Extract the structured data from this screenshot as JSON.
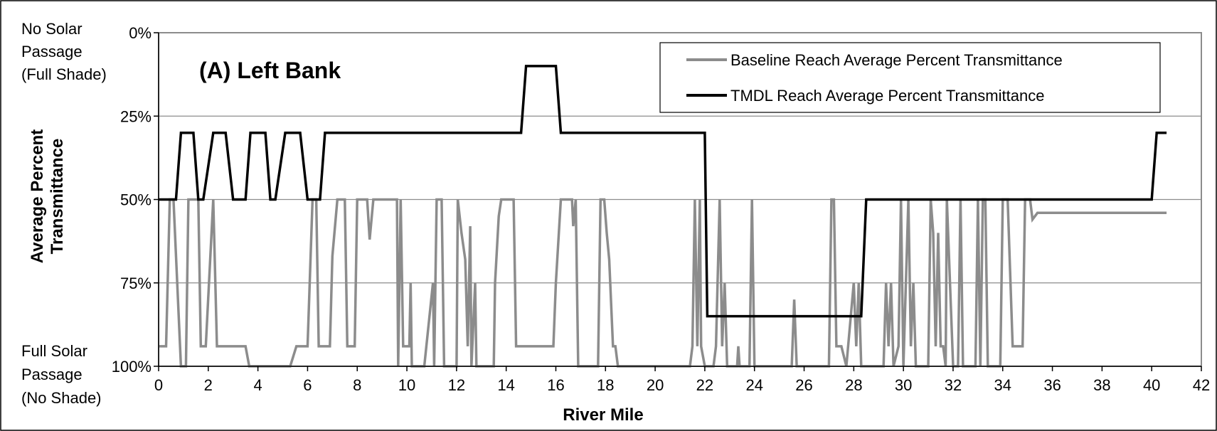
{
  "chart_data": {
    "type": "line",
    "title": "(A) Left Bank",
    "xlabel": "River Mile",
    "ylabel": "Average Percent Transmittance",
    "xlim": [
      0,
      42
    ],
    "ylim": [
      0,
      100
    ],
    "y_inverted": true,
    "xticks": [
      0,
      2,
      4,
      6,
      8,
      10,
      12,
      14,
      16,
      18,
      20,
      22,
      24,
      26,
      28,
      30,
      32,
      34,
      36,
      38,
      40,
      42
    ],
    "yticks": [
      0,
      25,
      50,
      75,
      100
    ],
    "ytick_labels": [
      "0%",
      "25%",
      "50%",
      "75%",
      "100%"
    ],
    "grid": "horizontal",
    "legend_position": "top-right",
    "top_annotation": [
      "No Solar",
      "Passage",
      "(Full Shade)"
    ],
    "bottom_annotation": [
      "Full Solar",
      "Passage",
      "(No Shade)"
    ],
    "series": [
      {
        "name": "Baseline Reach Average Percent Transmittance",
        "color": "#8c8c8c",
        "points": [
          [
            0,
            94
          ],
          [
            0.3,
            94
          ],
          [
            0.45,
            50
          ],
          [
            0.6,
            50
          ],
          [
            0.9,
            100
          ],
          [
            1.1,
            100
          ],
          [
            1.2,
            50
          ],
          [
            1.6,
            50
          ],
          [
            1.7,
            94
          ],
          [
            1.9,
            94
          ],
          [
            2.2,
            50
          ],
          [
            2.35,
            94
          ],
          [
            3.5,
            94
          ],
          [
            3.65,
            100
          ],
          [
            5.3,
            100
          ],
          [
            5.55,
            94
          ],
          [
            6.0,
            94
          ],
          [
            6.2,
            50
          ],
          [
            6.35,
            50
          ],
          [
            6.45,
            94
          ],
          [
            6.9,
            94
          ],
          [
            7.0,
            67
          ],
          [
            7.2,
            50
          ],
          [
            7.5,
            50
          ],
          [
            7.6,
            94
          ],
          [
            7.9,
            94
          ],
          [
            8.0,
            50
          ],
          [
            8.4,
            50
          ],
          [
            8.5,
            62
          ],
          [
            8.65,
            50
          ],
          [
            9.6,
            50
          ],
          [
            9.65,
            100
          ],
          [
            9.75,
            50
          ],
          [
            9.85,
            94
          ],
          [
            10.1,
            94
          ],
          [
            10.15,
            75
          ],
          [
            10.2,
            100
          ],
          [
            10.7,
            100
          ],
          [
            11.05,
            75
          ],
          [
            11.1,
            100
          ],
          [
            11.2,
            50
          ],
          [
            11.4,
            50
          ],
          [
            11.5,
            100
          ],
          [
            12.0,
            100
          ],
          [
            12.05,
            50
          ],
          [
            12.2,
            60
          ],
          [
            12.35,
            68
          ],
          [
            12.45,
            94
          ],
          [
            12.55,
            58
          ],
          [
            12.6,
            100
          ],
          [
            12.75,
            75
          ],
          [
            12.8,
            100
          ],
          [
            13.5,
            100
          ],
          [
            13.55,
            75
          ],
          [
            13.7,
            55
          ],
          [
            13.8,
            50
          ],
          [
            14.3,
            50
          ],
          [
            14.4,
            94
          ],
          [
            15.9,
            94
          ],
          [
            16.0,
            75
          ],
          [
            16.2,
            50
          ],
          [
            16.65,
            50
          ],
          [
            16.7,
            58
          ],
          [
            16.8,
            50
          ],
          [
            16.9,
            100
          ],
          [
            17.7,
            100
          ],
          [
            17.8,
            50
          ],
          [
            17.95,
            50
          ],
          [
            18.05,
            60
          ],
          [
            18.15,
            68
          ],
          [
            18.3,
            94
          ],
          [
            18.4,
            94
          ],
          [
            18.5,
            100
          ],
          [
            21.4,
            100
          ],
          [
            21.5,
            94
          ],
          [
            21.6,
            50
          ],
          [
            21.7,
            94
          ],
          [
            21.8,
            50
          ],
          [
            21.85,
            94
          ],
          [
            22.0,
            100
          ],
          [
            22.35,
            100
          ],
          [
            22.45,
            94
          ],
          [
            22.6,
            50
          ],
          [
            22.7,
            94
          ],
          [
            22.8,
            75
          ],
          [
            22.9,
            100
          ],
          [
            23.3,
            100
          ],
          [
            23.35,
            94
          ],
          [
            23.4,
            100
          ],
          [
            23.8,
            100
          ],
          [
            23.9,
            50
          ],
          [
            24.0,
            100
          ],
          [
            25.5,
            100
          ],
          [
            25.6,
            80
          ],
          [
            25.7,
            100
          ],
          [
            27.0,
            100
          ],
          [
            27.1,
            50
          ],
          [
            27.2,
            50
          ],
          [
            27.3,
            94
          ],
          [
            27.5,
            94
          ],
          [
            27.7,
            100
          ],
          [
            28.0,
            75
          ],
          [
            28.1,
            94
          ],
          [
            28.2,
            75
          ],
          [
            28.3,
            100
          ],
          [
            29.2,
            100
          ],
          [
            29.3,
            75
          ],
          [
            29.4,
            94
          ],
          [
            29.5,
            75
          ],
          [
            29.6,
            100
          ],
          [
            29.8,
            94
          ],
          [
            29.9,
            50
          ],
          [
            30.0,
            100
          ],
          [
            30.2,
            50
          ],
          [
            30.3,
            94
          ],
          [
            30.4,
            75
          ],
          [
            30.5,
            100
          ],
          [
            31.0,
            100
          ],
          [
            31.1,
            50
          ],
          [
            31.2,
            60
          ],
          [
            31.3,
            94
          ],
          [
            31.4,
            60
          ],
          [
            31.5,
            94
          ],
          [
            31.6,
            94
          ],
          [
            31.7,
            100
          ],
          [
            31.75,
            50
          ],
          [
            32.0,
            100
          ],
          [
            32.2,
            100
          ],
          [
            32.3,
            50
          ],
          [
            32.4,
            100
          ],
          [
            32.9,
            100
          ],
          [
            33.0,
            50
          ],
          [
            33.1,
            100
          ],
          [
            33.2,
            50
          ],
          [
            33.3,
            50
          ],
          [
            33.4,
            100
          ],
          [
            33.9,
            100
          ],
          [
            34.0,
            50
          ],
          [
            34.2,
            50
          ],
          [
            34.4,
            94
          ],
          [
            34.8,
            94
          ],
          [
            34.9,
            50
          ],
          [
            35.1,
            50
          ],
          [
            35.2,
            56
          ],
          [
            35.4,
            54
          ],
          [
            40.6,
            54
          ]
        ]
      },
      {
        "name": "TMDL Reach Average Percent Transmittance",
        "color": "#000000",
        "points": [
          [
            0,
            50
          ],
          [
            0.7,
            50
          ],
          [
            0.9,
            30
          ],
          [
            1.4,
            30
          ],
          [
            1.6,
            50
          ],
          [
            1.8,
            50
          ],
          [
            2.2,
            30
          ],
          [
            2.7,
            30
          ],
          [
            3.0,
            50
          ],
          [
            3.5,
            50
          ],
          [
            3.7,
            30
          ],
          [
            4.3,
            30
          ],
          [
            4.5,
            50
          ],
          [
            4.7,
            50
          ],
          [
            5.1,
            30
          ],
          [
            5.7,
            30
          ],
          [
            6.0,
            50
          ],
          [
            6.5,
            50
          ],
          [
            6.7,
            30
          ],
          [
            14.6,
            30
          ],
          [
            14.8,
            10
          ],
          [
            16.0,
            10
          ],
          [
            16.2,
            30
          ],
          [
            22.0,
            30
          ],
          [
            22.1,
            85
          ],
          [
            28.3,
            85
          ],
          [
            28.5,
            50
          ],
          [
            40.0,
            50
          ],
          [
            40.2,
            30
          ],
          [
            40.6,
            30
          ]
        ]
      }
    ]
  }
}
